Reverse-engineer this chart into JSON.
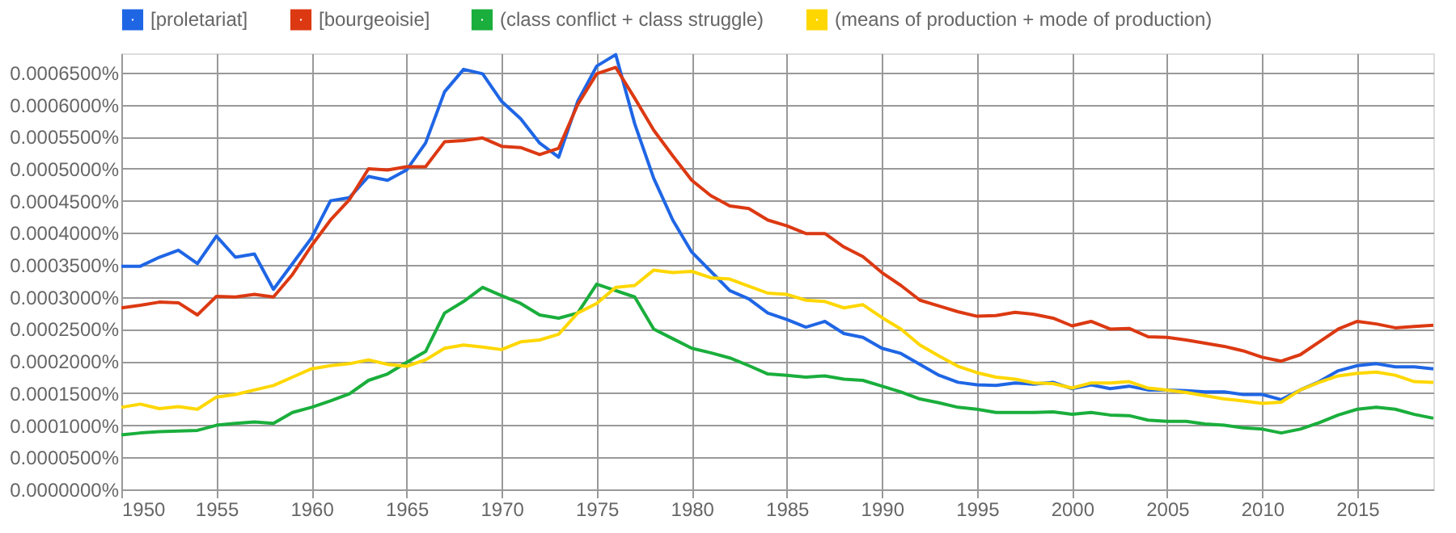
{
  "chart_data": {
    "type": "line",
    "x": [
      1950,
      1951,
      1952,
      1953,
      1954,
      1955,
      1956,
      1957,
      1958,
      1959,
      1960,
      1961,
      1962,
      1963,
      1964,
      1965,
      1966,
      1967,
      1968,
      1969,
      1970,
      1971,
      1972,
      1973,
      1974,
      1975,
      1976,
      1977,
      1978,
      1979,
      1980,
      1981,
      1982,
      1983,
      1984,
      1985,
      1986,
      1987,
      1988,
      1989,
      1990,
      1991,
      1992,
      1993,
      1994,
      1995,
      1996,
      1997,
      1998,
      1999,
      2000,
      2001,
      2002,
      2003,
      2004,
      2005,
      2006,
      2007,
      2008,
      2009,
      2010,
      2011,
      2012,
      2013,
      2014,
      2015,
      2016,
      2017,
      2018,
      2019
    ],
    "xlim": [
      1950,
      2019
    ],
    "xticks": [
      1950,
      1955,
      1960,
      1965,
      1970,
      1975,
      1980,
      1985,
      1990,
      1995,
      2000,
      2005,
      2010,
      2015
    ],
    "ylim": [
      0,
      0.00068
    ],
    "yticks": [
      {
        "value": 0,
        "label": "0.0000000%"
      },
      {
        "value": 5e-05,
        "label": "0.0000500%"
      },
      {
        "value": 0.0001,
        "label": "0.0001000%"
      },
      {
        "value": 0.00015,
        "label": "0.0001500%"
      },
      {
        "value": 0.0002,
        "label": "0.0002000%"
      },
      {
        "value": 0.00025,
        "label": "0.0002500%"
      },
      {
        "value": 0.0003,
        "label": "0.0003000%"
      },
      {
        "value": 0.00035,
        "label": "0.0003500%"
      },
      {
        "value": 0.0004,
        "label": "0.0004000%"
      },
      {
        "value": 0.00045,
        "label": "0.0004500%"
      },
      {
        "value": 0.0005,
        "label": "0.0005000%"
      },
      {
        "value": 0.00055,
        "label": "0.0005500%"
      },
      {
        "value": 0.0006,
        "label": "0.0006000%"
      },
      {
        "value": 0.00065,
        "label": "0.0006500%"
      }
    ],
    "grid": true,
    "legend": "top",
    "line_style": "solid",
    "marker": "none",
    "series": [
      {
        "name": "[proletariat]",
        "color": "#1f66e5",
        "values": [
          0.000348,
          0.000348,
          0.000362,
          0.000373,
          0.000352,
          0.000395,
          0.000362,
          0.000367,
          0.000312,
          0.000352,
          0.000392,
          0.00045,
          0.000455,
          0.000488,
          0.000482,
          0.000498,
          0.00054,
          0.00062,
          0.000655,
          0.000648,
          0.000605,
          0.000578,
          0.00054,
          0.000518,
          0.000605,
          0.00066,
          0.000678,
          0.00057,
          0.000485,
          0.00042,
          0.00037,
          0.00034,
          0.00031,
          0.000297,
          0.000275,
          0.000265,
          0.000253,
          0.000262,
          0.000243,
          0.000237,
          0.00022,
          0.000212,
          0.000195,
          0.000178,
          0.000167,
          0.000163,
          0.000162,
          0.000166,
          0.000164,
          0.000167,
          0.000157,
          0.000163,
          0.000157,
          0.000161,
          0.000155,
          0.000155,
          0.000154,
          0.000152,
          0.000152,
          0.000148,
          0.000148,
          0.00014,
          0.000155,
          0.000168,
          0.000185,
          0.000193,
          0.000196,
          0.000191,
          0.000191,
          0.000188
        ]
      },
      {
        "name": "[bourgeoisie]",
        "color": "#dc3912",
        "values": [
          0.000283,
          0.000287,
          0.000292,
          0.000291,
          0.000272,
          0.000301,
          0.0003,
          0.000304,
          0.0003,
          0.000335,
          0.00038,
          0.00042,
          0.000452,
          0.0005,
          0.000498,
          0.000503,
          0.000503,
          0.000542,
          0.000544,
          0.000548,
          0.000535,
          0.000533,
          0.000522,
          0.000532,
          0.0006,
          0.000648,
          0.000658,
          0.00061,
          0.00056,
          0.00052,
          0.000482,
          0.000458,
          0.000442,
          0.000438,
          0.00042,
          0.000411,
          0.000399,
          0.000399,
          0.000378,
          0.000363,
          0.000338,
          0.000318,
          0.000295,
          0.000286,
          0.000277,
          0.00027,
          0.000271,
          0.000276,
          0.000273,
          0.000267,
          0.000255,
          0.000262,
          0.00025,
          0.000251,
          0.000238,
          0.000237,
          0.000233,
          0.000228,
          0.000223,
          0.000216,
          0.000206,
          0.0002,
          0.00021,
          0.00023,
          0.00025,
          0.000262,
          0.000258,
          0.000252,
          0.000254,
          0.000256
        ]
      },
      {
        "name": "(class conflict + class struggle)",
        "color": "#1aae3c",
        "values": [
          8.5e-05,
          8.8e-05,
          9e-05,
          9.1e-05,
          9.2e-05,
          0.0001,
          0.000103,
          0.000105,
          0.000103,
          0.00012,
          0.000128,
          0.000138,
          0.000149,
          0.00017,
          0.00018,
          0.000198,
          0.000215,
          0.000275,
          0.000293,
          0.000315,
          0.000302,
          0.00029,
          0.000272,
          0.000267,
          0.000275,
          0.00032,
          0.00031,
          0.0003,
          0.00025,
          0.000235,
          0.00022,
          0.000213,
          0.000205,
          0.000193,
          0.00018,
          0.000178,
          0.000175,
          0.000177,
          0.000172,
          0.00017,
          0.000161,
          0.000152,
          0.000141,
          0.000135,
          0.000128,
          0.000125,
          0.00012,
          0.00012,
          0.00012,
          0.000121,
          0.000117,
          0.00012,
          0.000116,
          0.000115,
          0.000108,
          0.000106,
          0.000106,
          0.000102,
          0.0001,
          9.6e-05,
          9.4e-05,
          8.8e-05,
          9.4e-05,
          0.000104,
          0.000116,
          0.000125,
          0.000128,
          0.000125,
          0.000117,
          0.000111
        ]
      },
      {
        "name": "(means of production + mode of production)",
        "color": "#ffd700",
        "values": [
          0.000128,
          0.000133,
          0.000126,
          0.000129,
          0.000125,
          0.000144,
          0.000148,
          0.000155,
          0.000162,
          0.000175,
          0.000188,
          0.000193,
          0.000196,
          0.000202,
          0.000195,
          0.000192,
          0.000202,
          0.00022,
          0.000225,
          0.000222,
          0.000218,
          0.00023,
          0.000233,
          0.000242,
          0.000275,
          0.00029,
          0.000315,
          0.000318,
          0.000342,
          0.000338,
          0.00034,
          0.00033,
          0.000328,
          0.000317,
          0.000306,
          0.000304,
          0.000295,
          0.000293,
          0.000283,
          0.000288,
          0.000268,
          0.00025,
          0.000225,
          0.000208,
          0.000192,
          0.000182,
          0.000175,
          0.000172,
          0.000166,
          0.000165,
          0.000158,
          0.000166,
          0.000166,
          0.000168,
          0.000158,
          0.000155,
          0.000151,
          0.000146,
          0.000141,
          0.000138,
          0.000134,
          0.000136,
          0.000155,
          0.000167,
          0.000177,
          0.000181,
          0.000183,
          0.000178,
          0.000168,
          0.000167
        ]
      }
    ]
  }
}
